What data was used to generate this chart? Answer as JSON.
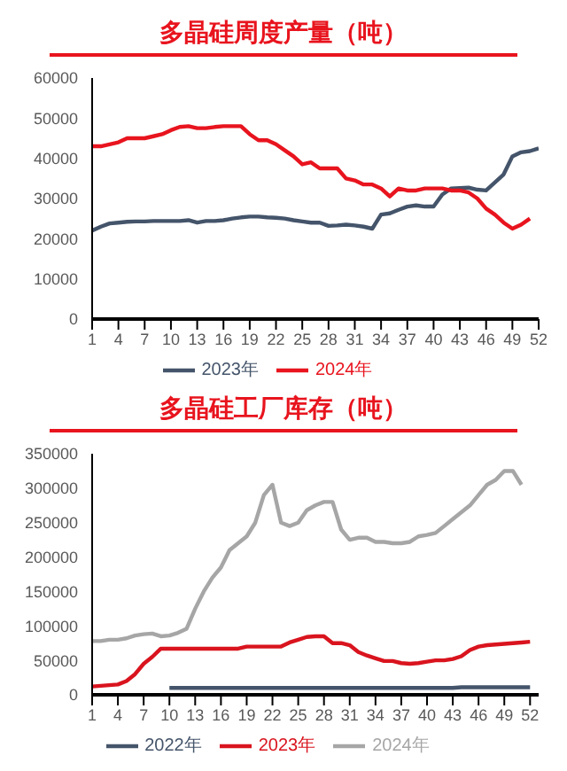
{
  "chart_data": [
    {
      "type": "line",
      "title": "多晶硅周度产量（吨）",
      "x": [
        1,
        2,
        3,
        4,
        5,
        6,
        7,
        8,
        9,
        10,
        11,
        12,
        13,
        14,
        15,
        16,
        17,
        18,
        19,
        20,
        21,
        22,
        23,
        24,
        25,
        26,
        27,
        28,
        29,
        30,
        31,
        32,
        33,
        34,
        35,
        36,
        37,
        38,
        39,
        40,
        41,
        42,
        43,
        44,
        45,
        46,
        47,
        48,
        49,
        50,
        51,
        52
      ],
      "xlim": [
        1,
        52
      ],
      "xticks": [
        1,
        4,
        7,
        10,
        13,
        16,
        19,
        22,
        25,
        28,
        31,
        34,
        37,
        40,
        43,
        46,
        49,
        52
      ],
      "ylim": [
        0,
        60000
      ],
      "yticks": [
        0,
        10000,
        20000,
        30000,
        40000,
        50000,
        60000
      ],
      "legend": "bottom",
      "marker": "none",
      "line_style": "solid",
      "series": [
        {
          "name": "2023年",
          "color": "#44546a",
          "values": [
            22000,
            23000,
            23800,
            24000,
            24200,
            24300,
            24300,
            24400,
            24400,
            24400,
            24400,
            24600,
            24000,
            24400,
            24400,
            24600,
            25000,
            25300,
            25500,
            25500,
            25300,
            25200,
            25000,
            24600,
            24300,
            24000,
            24000,
            23200,
            23300,
            23500,
            23300,
            23000,
            22500,
            26000,
            26300,
            27200,
            28000,
            28300,
            28000,
            28000,
            31000,
            32500,
            32600,
            32700,
            32200,
            32000,
            34000,
            36000,
            40500,
            41500,
            41800,
            42500
          ]
        },
        {
          "name": "2024年",
          "color": "#e8141e",
          "values": [
            43000,
            43000,
            43500,
            44000,
            45000,
            45000,
            45000,
            45500,
            46000,
            47000,
            47800,
            48000,
            47500,
            47500,
            47800,
            48000,
            48000,
            48000,
            46000,
            44500,
            44500,
            43500,
            42000,
            40500,
            38500,
            39000,
            37500,
            37500,
            37500,
            35000,
            34500,
            33500,
            33500,
            32500,
            30500,
            32500,
            32000,
            32000,
            32500,
            32500,
            32500,
            32000,
            32000,
            31500,
            30000,
            27500,
            26000,
            24000,
            22500,
            23500,
            25000,
            null
          ]
        }
      ]
    },
    {
      "type": "line",
      "title": "多晶硅工厂库存（吨）",
      "x": [
        1,
        2,
        3,
        4,
        5,
        6,
        7,
        8,
        9,
        10,
        11,
        12,
        13,
        14,
        15,
        16,
        17,
        18,
        19,
        20,
        21,
        22,
        23,
        24,
        25,
        26,
        27,
        28,
        29,
        30,
        31,
        32,
        33,
        34,
        35,
        36,
        37,
        38,
        39,
        40,
        41,
        42,
        43,
        44,
        45,
        46,
        47,
        48,
        49,
        50,
        51,
        52
      ],
      "xlim": [
        1,
        53
      ],
      "xticks": [
        1,
        4,
        7,
        10,
        13,
        16,
        19,
        22,
        25,
        28,
        31,
        34,
        37,
        40,
        43,
        46,
        49,
        52
      ],
      "ylim": [
        0,
        350000
      ],
      "yticks": [
        0,
        50000,
        100000,
        150000,
        200000,
        250000,
        300000,
        350000
      ],
      "legend": "bottom",
      "marker": "none",
      "line_style": "solid",
      "series": [
        {
          "name": "2022年",
          "color": "#44546a",
          "values": [
            null,
            null,
            null,
            null,
            null,
            null,
            null,
            null,
            null,
            10000,
            10000,
            10000,
            10000,
            10000,
            10000,
            10000,
            10000,
            10000,
            10000,
            10000,
            10000,
            10000,
            10000,
            10000,
            10000,
            10000,
            10000,
            10000,
            10000,
            10000,
            10000,
            10000,
            10000,
            10000,
            10000,
            10000,
            10000,
            10000,
            10000,
            10000,
            10000,
            10000,
            10000,
            11000,
            11000,
            11000,
            11000,
            11000,
            11000,
            11000,
            11000,
            11000
          ]
        },
        {
          "name": "2023年",
          "color": "#d9141e",
          "values": [
            12000,
            13000,
            14000,
            15000,
            20000,
            30000,
            45000,
            55000,
            67000,
            67000,
            67000,
            67000,
            67000,
            67000,
            67000,
            67000,
            67000,
            67000,
            70000,
            70000,
            70000,
            70000,
            70000,
            76000,
            80000,
            84000,
            85000,
            85000,
            75000,
            75000,
            72000,
            62000,
            57000,
            53000,
            49000,
            49000,
            46000,
            45000,
            46000,
            48000,
            50000,
            50000,
            52000,
            56000,
            65000,
            70000,
            72000,
            73000,
            74000,
            75000,
            76000,
            77000
          ]
        },
        {
          "name": "2024年",
          "color": "#a6a6a6",
          "values": [
            78000,
            78000,
            80000,
            80000,
            82000,
            86000,
            88000,
            89000,
            85000,
            86000,
            90000,
            96000,
            125000,
            150000,
            170000,
            185000,
            210000,
            220000,
            230000,
            250000,
            290000,
            305000,
            250000,
            245000,
            250000,
            268000,
            275000,
            280000,
            280000,
            240000,
            225000,
            228000,
            228000,
            222000,
            222000,
            220000,
            220000,
            222000,
            230000,
            232000,
            235000,
            245000,
            255000,
            265000,
            275000,
            290000,
            305000,
            312000,
            325000,
            325000,
            305000,
            null
          ]
        }
      ]
    }
  ]
}
